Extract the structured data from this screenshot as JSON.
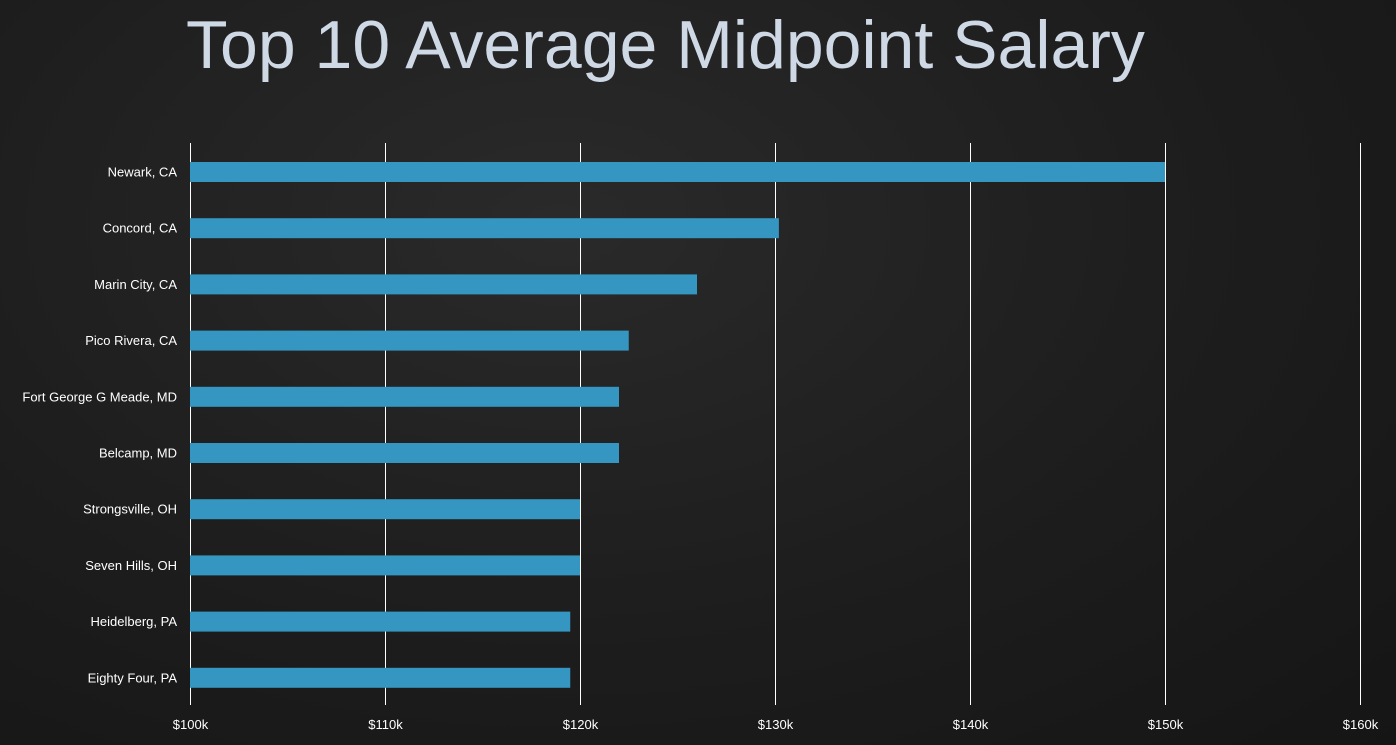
{
  "chart_data": {
    "type": "bar",
    "orientation": "horizontal",
    "title": "Top 10 Average Midpoint Salary",
    "categories": [
      "Newark, CA",
      "Concord, CA",
      "Marin City, CA",
      "Pico Rivera, CA",
      "Fort George G Meade, MD",
      "Belcamp, MD",
      "Strongsville, OH",
      "Seven Hills, OH",
      "Heidelberg, PA",
      "Eighty Four, PA"
    ],
    "values": [
      150000,
      130200,
      126000,
      122500,
      122000,
      122000,
      120000,
      120000,
      119500,
      119500
    ],
    "xlim": [
      100000,
      160000
    ],
    "xticks": [
      100000,
      110000,
      120000,
      130000,
      140000,
      150000,
      160000
    ],
    "xtick_labels": [
      "$100k",
      "$110k",
      "$120k",
      "$130k",
      "$140k",
      "$150k",
      "$160k"
    ],
    "grid": true,
    "bar_color": "#3496c1",
    "gridline_color": "#ffffff",
    "text_color": "#ffffff",
    "title_color": "#cfd9e6",
    "legend": "none"
  }
}
